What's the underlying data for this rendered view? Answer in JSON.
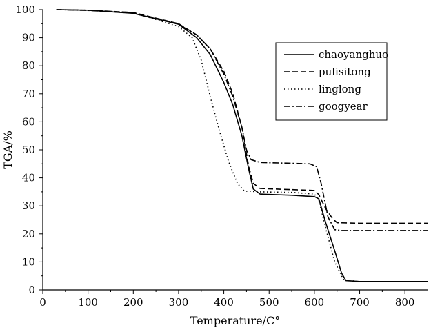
{
  "chart_data": {
    "type": "line",
    "title": "",
    "xlabel": "Temperature/C°",
    "ylabel": "TGA/%",
    "xlim": [
      0,
      850
    ],
    "ylim": [
      0,
      100
    ],
    "xticks": [
      0,
      100,
      200,
      300,
      400,
      500,
      600,
      700,
      800
    ],
    "yticks": [
      0,
      10,
      20,
      30,
      40,
      50,
      60,
      70,
      80,
      90,
      100
    ],
    "grid": false,
    "legend_position": "top-right",
    "series": [
      {
        "name": "chaoyanghuo",
        "style": "solid",
        "points": [
          [
            30,
            100
          ],
          [
            100,
            99.8
          ],
          [
            200,
            98.7
          ],
          [
            300,
            94.8
          ],
          [
            340,
            90
          ],
          [
            370,
            84
          ],
          [
            400,
            74
          ],
          [
            420,
            66
          ],
          [
            440,
            55
          ],
          [
            455,
            43
          ],
          [
            465,
            36
          ],
          [
            480,
            34.2
          ],
          [
            550,
            33.8
          ],
          [
            600,
            33.3
          ],
          [
            610,
            32.5
          ],
          [
            625,
            24
          ],
          [
            645,
            14
          ],
          [
            660,
            6
          ],
          [
            670,
            3.3
          ],
          [
            700,
            3
          ],
          [
            850,
            3
          ]
        ]
      },
      {
        "name": "pulisitong",
        "style": "dashed",
        "points": [
          [
            30,
            100
          ],
          [
            100,
            99.8
          ],
          [
            200,
            99
          ],
          [
            300,
            95
          ],
          [
            340,
            91
          ],
          [
            370,
            86
          ],
          [
            400,
            78
          ],
          [
            420,
            70
          ],
          [
            440,
            58
          ],
          [
            455,
            44
          ],
          [
            465,
            38
          ],
          [
            480,
            36.2
          ],
          [
            550,
            35.8
          ],
          [
            600,
            35.5
          ],
          [
            610,
            34
          ],
          [
            625,
            29
          ],
          [
            640,
            25.5
          ],
          [
            650,
            24
          ],
          [
            700,
            23.8
          ],
          [
            850,
            23.8
          ]
        ]
      },
      {
        "name": "linglong",
        "style": "dotted",
        "points": [
          [
            30,
            100
          ],
          [
            100,
            99.8
          ],
          [
            200,
            99
          ],
          [
            300,
            94
          ],
          [
            330,
            90
          ],
          [
            350,
            82
          ],
          [
            370,
            69
          ],
          [
            390,
            57
          ],
          [
            410,
            46
          ],
          [
            430,
            38
          ],
          [
            445,
            35.3
          ],
          [
            480,
            35
          ],
          [
            550,
            34.8
          ],
          [
            600,
            34.2
          ],
          [
            610,
            32
          ],
          [
            625,
            22
          ],
          [
            645,
            10
          ],
          [
            665,
            3.5
          ],
          [
            700,
            3
          ],
          [
            850,
            3
          ]
        ]
      },
      {
        "name": "googyear",
        "style": "dashdot",
        "points": [
          [
            30,
            100
          ],
          [
            100,
            99.7
          ],
          [
            200,
            98.8
          ],
          [
            300,
            94.8
          ],
          [
            340,
            91
          ],
          [
            370,
            86
          ],
          [
            400,
            77
          ],
          [
            420,
            69
          ],
          [
            440,
            58
          ],
          [
            450,
            50
          ],
          [
            460,
            46.5
          ],
          [
            480,
            45.5
          ],
          [
            550,
            45.2
          ],
          [
            590,
            45
          ],
          [
            605,
            44
          ],
          [
            615,
            38
          ],
          [
            630,
            26
          ],
          [
            645,
            21.5
          ],
          [
            660,
            21.2
          ],
          [
            850,
            21.2
          ]
        ]
      }
    ]
  }
}
